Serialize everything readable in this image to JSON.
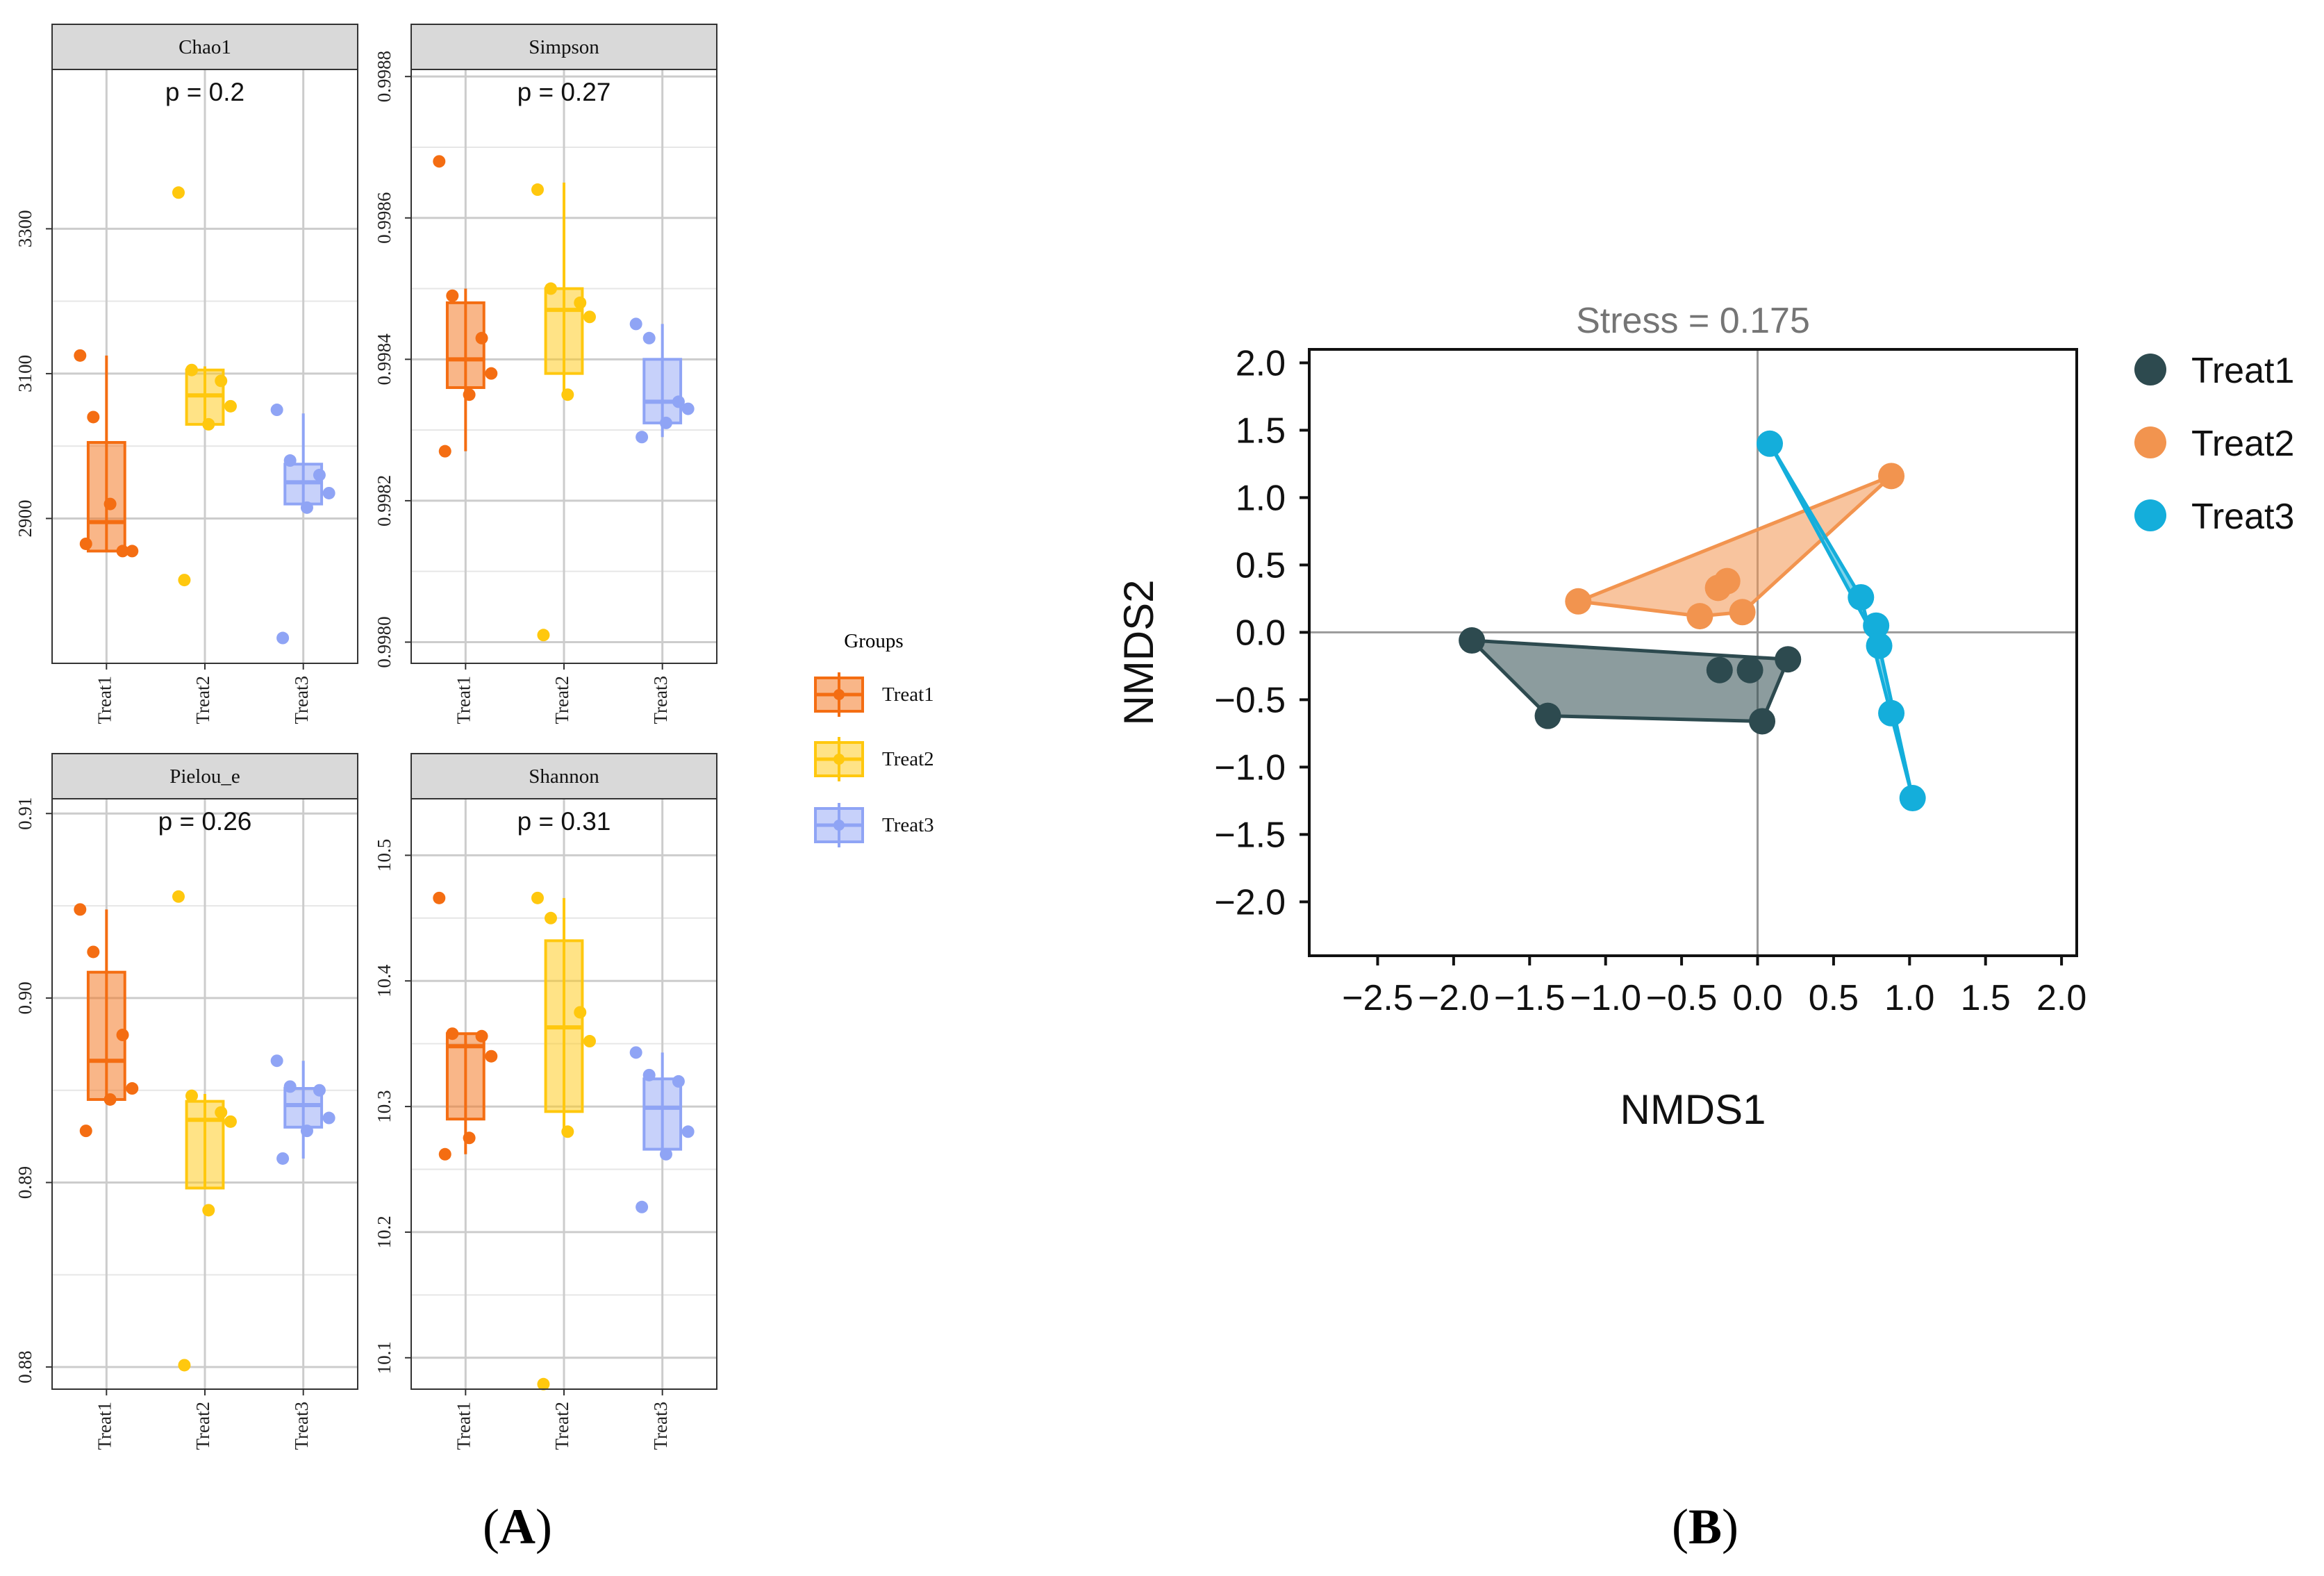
{
  "figure": {
    "panel_a_label": "(A)",
    "panel_b_label": "(B)",
    "panel_a_letter": "A",
    "panel_b_letter": "B",
    "group_colors": {
      "Treat1": "#f46d12",
      "Treat2": "#ffc80e",
      "Treat3": "#8fa4f5"
    },
    "nmds_colors": {
      "Treat1": "#2d4a4f",
      "Treat2": "#f2944f",
      "Treat3": "#14aedb"
    }
  },
  "legend_a": {
    "title": "Groups",
    "items": [
      "Treat1",
      "Treat2",
      "Treat3"
    ]
  },
  "chart_data": [
    {
      "type": "box",
      "title": "Chao1",
      "annotation": "p = 0.2",
      "categories": [
        "Treat1",
        "Treat2",
        "Treat3"
      ],
      "ylim": [
        2700,
        3520
      ],
      "yticks": [
        2900,
        3100,
        3300
      ],
      "ytick_labels": [
        "2900",
        "3100",
        "3300"
      ],
      "boxes": [
        {
          "group": "Treat1",
          "whisker_low": 2855,
          "q1": 2855,
          "median": 2895,
          "q3": 3005,
          "whisker_high": 3125
        },
        {
          "group": "Treat2",
          "whisker_low": 3030,
          "q1": 3030,
          "median": 3070,
          "q3": 3105,
          "whisker_high": 3110
        },
        {
          "group": "Treat3",
          "whisker_low": 2920,
          "q1": 2920,
          "median": 2950,
          "q3": 2975,
          "whisker_high": 3045
        }
      ],
      "points": [
        {
          "group": "Treat1",
          "values": [
            3125,
            3040,
            2855,
            2855,
            2920,
            2865
          ]
        },
        {
          "group": "Treat2",
          "values": [
            3350,
            3105,
            3090,
            3055,
            3030,
            2815
          ]
        },
        {
          "group": "Treat3",
          "values": [
            3050,
            2980,
            2960,
            2935,
            2915,
            2735
          ]
        }
      ]
    },
    {
      "type": "box",
      "title": "Simpson",
      "annotation": "p = 0.27",
      "categories": [
        "Treat1",
        "Treat2",
        "Treat3"
      ],
      "ylim": [
        0.99797,
        0.99881
      ],
      "yticks": [
        0.998,
        0.9982,
        0.9984,
        0.9986,
        0.9988
      ],
      "ytick_labels": [
        "0.9980",
        "0.9982",
        "0.9984",
        "0.9986",
        "0.9988"
      ],
      "boxes": [
        {
          "group": "Treat1",
          "whisker_low": 0.99827,
          "q1": 0.99836,
          "median": 0.9984,
          "q3": 0.99848,
          "whisker_high": 0.9985
        },
        {
          "group": "Treat2",
          "whisker_low": 0.99835,
          "q1": 0.99838,
          "median": 0.99847,
          "q3": 0.9985,
          "whisker_high": 0.99865
        },
        {
          "group": "Treat3",
          "whisker_low": 0.99829,
          "q1": 0.99831,
          "median": 0.99834,
          "q3": 0.9984,
          "whisker_high": 0.99845
        }
      ],
      "points": [
        {
          "group": "Treat1",
          "values": [
            0.99868,
            0.99849,
            0.99843,
            0.99838,
            0.99835,
            0.99827
          ]
        },
        {
          "group": "Treat2",
          "values": [
            0.99864,
            0.9985,
            0.99848,
            0.99846,
            0.99835,
            0.99801
          ]
        },
        {
          "group": "Treat3",
          "values": [
            0.99845,
            0.99843,
            0.99834,
            0.99833,
            0.99831,
            0.99829
          ]
        }
      ]
    },
    {
      "type": "box",
      "title": "Pielou_e",
      "annotation": "p = 0.26",
      "categories": [
        "Treat1",
        "Treat2",
        "Treat3"
      ],
      "ylim": [
        0.8788,
        0.9108
      ],
      "yticks": [
        0.88,
        0.89,
        0.9,
        0.91
      ],
      "ytick_labels": [
        "0.88",
        "0.89",
        "0.90",
        "0.91"
      ],
      "boxes": [
        {
          "group": "Treat1",
          "whisker_low": 0.8945,
          "q1": 0.8945,
          "median": 0.8966,
          "q3": 0.9014,
          "whisker_high": 0.9048
        },
        {
          "group": "Treat2",
          "whisker_low": 0.8897,
          "q1": 0.8897,
          "median": 0.8934,
          "q3": 0.8944,
          "whisker_high": 0.8948
        },
        {
          "group": "Treat3",
          "whisker_low": 0.8913,
          "q1": 0.893,
          "median": 0.8942,
          "q3": 0.8951,
          "whisker_high": 0.8966
        }
      ],
      "points": [
        {
          "group": "Treat1",
          "values": [
            0.9048,
            0.9025,
            0.898,
            0.8951,
            0.8945,
            0.8928
          ]
        },
        {
          "group": "Treat2",
          "values": [
            0.9055,
            0.8947,
            0.8938,
            0.8933,
            0.8885,
            0.8801
          ]
        },
        {
          "group": "Treat3",
          "values": [
            0.8966,
            0.8952,
            0.895,
            0.8935,
            0.8928,
            0.8913
          ]
        }
      ]
    },
    {
      "type": "box",
      "title": "Shannon",
      "annotation": "p = 0.31",
      "categories": [
        "Treat1",
        "Treat2",
        "Treat3"
      ],
      "ylim": [
        10.075,
        10.545
      ],
      "yticks": [
        10.1,
        10.2,
        10.3,
        10.4,
        10.5
      ],
      "ytick_labels": [
        "10.1",
        "10.2",
        "10.3",
        "10.4",
        "10.5"
      ],
      "boxes": [
        {
          "group": "Treat1",
          "whisker_low": 10.262,
          "q1": 10.29,
          "median": 10.348,
          "q3": 10.358,
          "whisker_high": 10.358
        },
        {
          "group": "Treat2",
          "whisker_low": 10.28,
          "q1": 10.296,
          "median": 10.363,
          "q3": 10.432,
          "whisker_high": 10.466
        },
        {
          "group": "Treat3",
          "whisker_low": 10.262,
          "q1": 10.266,
          "median": 10.299,
          "q3": 10.322,
          "whisker_high": 10.343
        }
      ],
      "points": [
        {
          "group": "Treat1",
          "values": [
            10.466,
            10.358,
            10.356,
            10.34,
            10.275,
            10.262
          ]
        },
        {
          "group": "Treat2",
          "values": [
            10.466,
            10.45,
            10.375,
            10.352,
            10.28,
            10.079
          ]
        },
        {
          "group": "Treat3",
          "values": [
            10.343,
            10.325,
            10.32,
            10.28,
            10.262,
            10.22
          ]
        }
      ]
    },
    {
      "type": "scatter",
      "title": "Stress = 0.175",
      "xlabel": "NMDS1",
      "ylabel": "NMDS2",
      "xlim": [
        -2.95,
        2.1
      ],
      "ylim": [
        -2.4,
        2.1
      ],
      "xticks": [
        -2.5,
        -2.0,
        -1.5,
        -1.0,
        -0.5,
        0.0,
        0.5,
        1.0,
        1.5,
        2.0
      ],
      "xtick_labels": [
        "−2.5",
        "−2.0",
        "−1.5",
        "−1.0",
        "−0.5",
        "0.0",
        "0.5",
        "1.0",
        "1.5",
        "2.0"
      ],
      "yticks": [
        -2.0,
        -1.5,
        -1.0,
        -0.5,
        0.0,
        0.5,
        1.0,
        1.5,
        2.0
      ],
      "ytick_labels": [
        "−2.0",
        "−1.5",
        "−1.0",
        "−0.5",
        "0.0",
        "0.5",
        "1.0",
        "1.5",
        "2.0"
      ],
      "series": [
        {
          "name": "Treat1",
          "points": [
            [
              -1.88,
              -0.06
            ],
            [
              -1.38,
              -0.62
            ],
            [
              -0.25,
              -0.28
            ],
            [
              -0.05,
              -0.28
            ],
            [
              0.2,
              -0.2
            ],
            [
              0.03,
              -0.66
            ]
          ],
          "hull": [
            [
              -1.88,
              -0.06
            ],
            [
              0.2,
              -0.2
            ],
            [
              0.03,
              -0.66
            ],
            [
              -1.38,
              -0.62
            ]
          ]
        },
        {
          "name": "Treat2",
          "points": [
            [
              -1.18,
              0.23
            ],
            [
              -0.38,
              0.12
            ],
            [
              -0.26,
              0.33
            ],
            [
              -0.2,
              0.38
            ],
            [
              -0.1,
              0.15
            ],
            [
              0.88,
              1.16
            ]
          ],
          "hull": [
            [
              -1.18,
              0.23
            ],
            [
              0.88,
              1.16
            ],
            [
              -0.1,
              0.15
            ],
            [
              -0.38,
              0.12
            ]
          ]
        },
        {
          "name": "Treat3",
          "points": [
            [
              0.08,
              1.4
            ],
            [
              0.68,
              0.26
            ],
            [
              0.78,
              0.05
            ],
            [
              0.8,
              -0.1
            ],
            [
              0.88,
              -0.6
            ],
            [
              1.02,
              -1.23
            ]
          ],
          "hull": [
            [
              0.08,
              1.4
            ],
            [
              0.8,
              -0.1
            ],
            [
              1.02,
              -1.23
            ],
            [
              0.68,
              0.26
            ]
          ]
        }
      ]
    }
  ]
}
